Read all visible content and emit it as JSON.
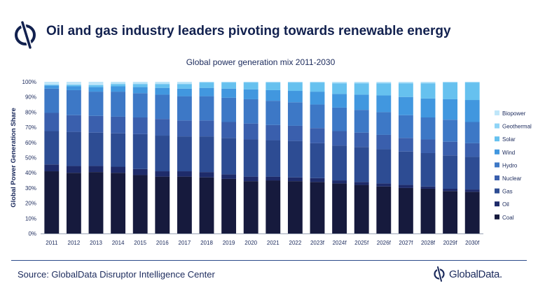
{
  "header": {
    "title": "Oil and gas industry leaders pivoting towards renewable energy"
  },
  "footer": {
    "source": "Source: GlobalData Disruptor Intelligence Center",
    "brand": "GlobalData."
  },
  "colors": {
    "Coal": "#161a3d",
    "Oil": "#1e2b6a",
    "Gas": "#2d4c93",
    "Nuclear": "#3a5fad",
    "Hydro": "#3d78c6",
    "Wind": "#4197df",
    "Solar": "#66c1ef",
    "Geothermal": "#8fd4f6",
    "Biopower": "#bfe6f9"
  },
  "chart_data": {
    "type": "bar",
    "stacked": true,
    "title": "Global power generation mix 2011-2030",
    "xlabel": "",
    "ylabel": "Global Power Generation Share",
    "ylim": [
      0,
      100
    ],
    "yticks": [
      "0%",
      "10%",
      "20%",
      "30%",
      "40%",
      "50%",
      "60%",
      "70%",
      "80%",
      "90%",
      "100%"
    ],
    "grid": false,
    "legend": "right",
    "categories": [
      "2011",
      "2012",
      "2013",
      "2014",
      "2015",
      "2016",
      "2017",
      "2018",
      "2019",
      "2020",
      "2021",
      "2022",
      "2023f",
      "2024f",
      "2025f",
      "2026f",
      "2027f",
      "2028f",
      "2029f",
      "2030f"
    ],
    "series": [
      {
        "name": "Coal",
        "values": [
          41,
          40,
          40.5,
          40,
          38.5,
          37.5,
          37.5,
          37,
          36,
          34.5,
          35,
          34.5,
          34,
          33,
          32,
          31,
          30,
          29.5,
          28,
          27.5
        ]
      },
      {
        "name": "Oil",
        "values": [
          4.5,
          4.5,
          4,
          4,
          4,
          3.5,
          3.5,
          3.5,
          3,
          3,
          2.5,
          2.5,
          2.5,
          2,
          2,
          2,
          2,
          1.5,
          1.5,
          1.5
        ]
      },
      {
        "name": "Gas",
        "values": [
          22,
          22.5,
          22,
          22,
          23,
          23.5,
          23,
          23.5,
          24,
          24.5,
          24,
          24,
          23,
          23,
          23,
          22.5,
          22,
          22,
          22,
          21.5
        ]
      },
      {
        "name": "Nuclear",
        "values": [
          12,
          11,
          11,
          11,
          11,
          11,
          10.5,
          10.5,
          10.5,
          10.5,
          10,
          10,
          10,
          9.5,
          9.5,
          9.5,
          9,
          9,
          9,
          9
        ]
      },
      {
        "name": "Hydro",
        "values": [
          16,
          16.5,
          16,
          16.5,
          16,
          16,
          16,
          16,
          16,
          16,
          16,
          15.5,
          15.5,
          15.5,
          15,
          15,
          15,
          14.5,
          14.5,
          14
        ]
      },
      {
        "name": "Wind",
        "values": [
          2,
          2.5,
          3,
          3.5,
          4,
          4.5,
          5,
          5.5,
          6,
          6.5,
          7,
          7.5,
          8.5,
          9,
          10,
          11,
          12,
          12.5,
          13.5,
          14.5
        ]
      },
      {
        "name": "Solar",
        "values": [
          0.5,
          1,
          1.3,
          1.5,
          2,
          2.5,
          3,
          3.5,
          4,
          4.5,
          5,
          5.5,
          6,
          7,
          7.5,
          8,
          9,
          10,
          11,
          11.5
        ]
      },
      {
        "name": "Geothermal",
        "values": [
          0.3,
          0.3,
          0.3,
          0.3,
          0.3,
          0.3,
          0.3,
          0.3,
          0.3,
          0.3,
          0.3,
          0.3,
          0.3,
          0.3,
          0.3,
          0.3,
          0.3,
          0.3,
          0.3,
          0.3
        ]
      },
      {
        "name": "Biopower",
        "values": [
          1.7,
          1.7,
          1.9,
          1.2,
          1.2,
          1.2,
          1.2,
          0.2,
          0.2,
          0.2,
          0.2,
          0.2,
          0.2,
          0.7,
          0.7,
          0.7,
          0.7,
          0.7,
          0.2,
          0.2
        ]
      }
    ]
  }
}
